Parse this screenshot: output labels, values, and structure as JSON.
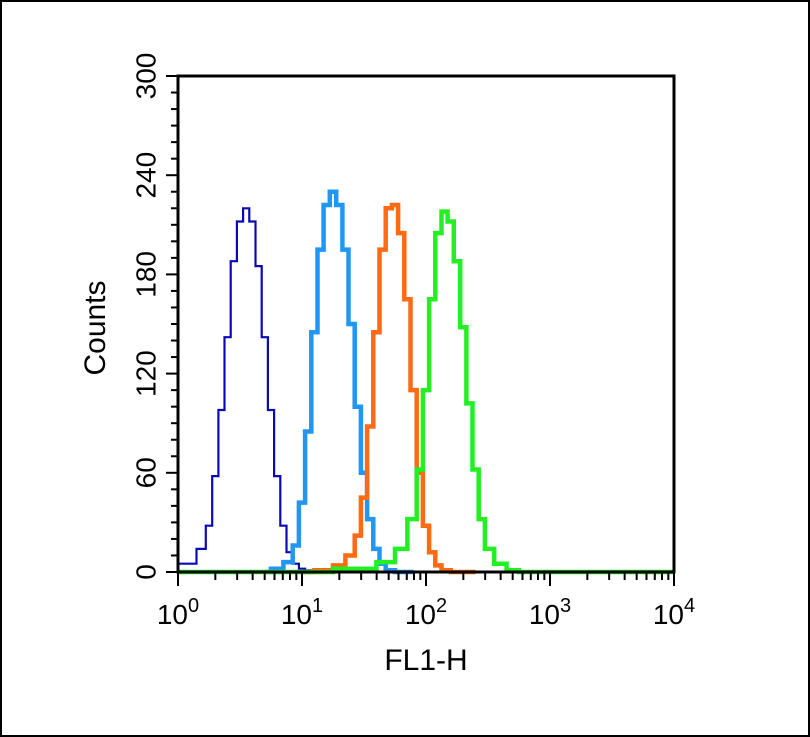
{
  "chart_data": {
    "type": "line",
    "title": "",
    "xlabel": "FL1-H",
    "ylabel": "Counts",
    "xscale": "log",
    "xlim": [
      1,
      10000
    ],
    "ylim": [
      0,
      300
    ],
    "x_ticks": [
      {
        "base": "10",
        "exp": "0"
      },
      {
        "base": "10",
        "exp": "1"
      },
      {
        "base": "10",
        "exp": "2"
      },
      {
        "base": "10",
        "exp": "3"
      },
      {
        "base": "10",
        "exp": "4"
      }
    ],
    "y_ticks": [
      "0",
      "60",
      "120",
      "180",
      "240",
      "300"
    ],
    "grid": false,
    "legend": "none",
    "series": [
      {
        "color": "#0a0ab4",
        "stroke": "thin",
        "x": [
          1.0,
          1.26,
          1.58,
          1.78,
          2.0,
          2.24,
          2.51,
          2.82,
          3.16,
          3.55,
          3.98,
          4.47,
          5.01,
          5.62,
          6.31,
          7.08,
          7.94,
          8.91,
          10.0,
          11.2,
          12.6
        ],
        "y": [
          5,
          5,
          14,
          28,
          58,
          98,
          142,
          188,
          212,
          220,
          212,
          185,
          142,
          98,
          58,
          28,
          12,
          5,
          2,
          1,
          0
        ]
      },
      {
        "color": "#2196f3",
        "stroke": "thick",
        "x": [
          5.0,
          6.31,
          7.94,
          8.91,
          10.0,
          11.2,
          12.6,
          14.1,
          15.8,
          17.8,
          20.0,
          22.4,
          25.1,
          28.2,
          31.6,
          35.5,
          39.8,
          44.7,
          50.1,
          63.1,
          79.4
        ],
        "y": [
          0,
          2,
          6,
          16,
          42,
          85,
          145,
          195,
          222,
          230,
          222,
          195,
          150,
          100,
          60,
          32,
          14,
          5,
          1,
          0,
          0
        ]
      },
      {
        "color": "#ff6a13",
        "stroke": "thick",
        "x": [
          10.0,
          15.8,
          20.0,
          25.1,
          28.2,
          31.6,
          35.5,
          39.8,
          44.7,
          50.1,
          56.2,
          63.1,
          70.8,
          79.4,
          89.1,
          100.0,
          112.0,
          126.0,
          141.0,
          178.0,
          251.0
        ],
        "y": [
          0,
          1,
          4,
          10,
          22,
          45,
          88,
          145,
          195,
          220,
          222,
          205,
          165,
          110,
          60,
          28,
          12,
          4,
          1,
          0,
          0
        ]
      },
      {
        "color": "#22f022",
        "stroke": "thick",
        "x": [
          1.0,
          10.0,
          31.6,
          50.1,
          63.1,
          79.4,
          89.1,
          100.0,
          112.0,
          126.0,
          141.0,
          158.0,
          178.0,
          200.0,
          224.0,
          251.0,
          282.0,
          316.0,
          398.0,
          501.0,
          631.0,
          10000.0
        ],
        "y": [
          0,
          0,
          2,
          6,
          14,
          32,
          62,
          110,
          165,
          205,
          218,
          212,
          188,
          148,
          102,
          62,
          32,
          14,
          5,
          1,
          0,
          0
        ]
      }
    ]
  }
}
